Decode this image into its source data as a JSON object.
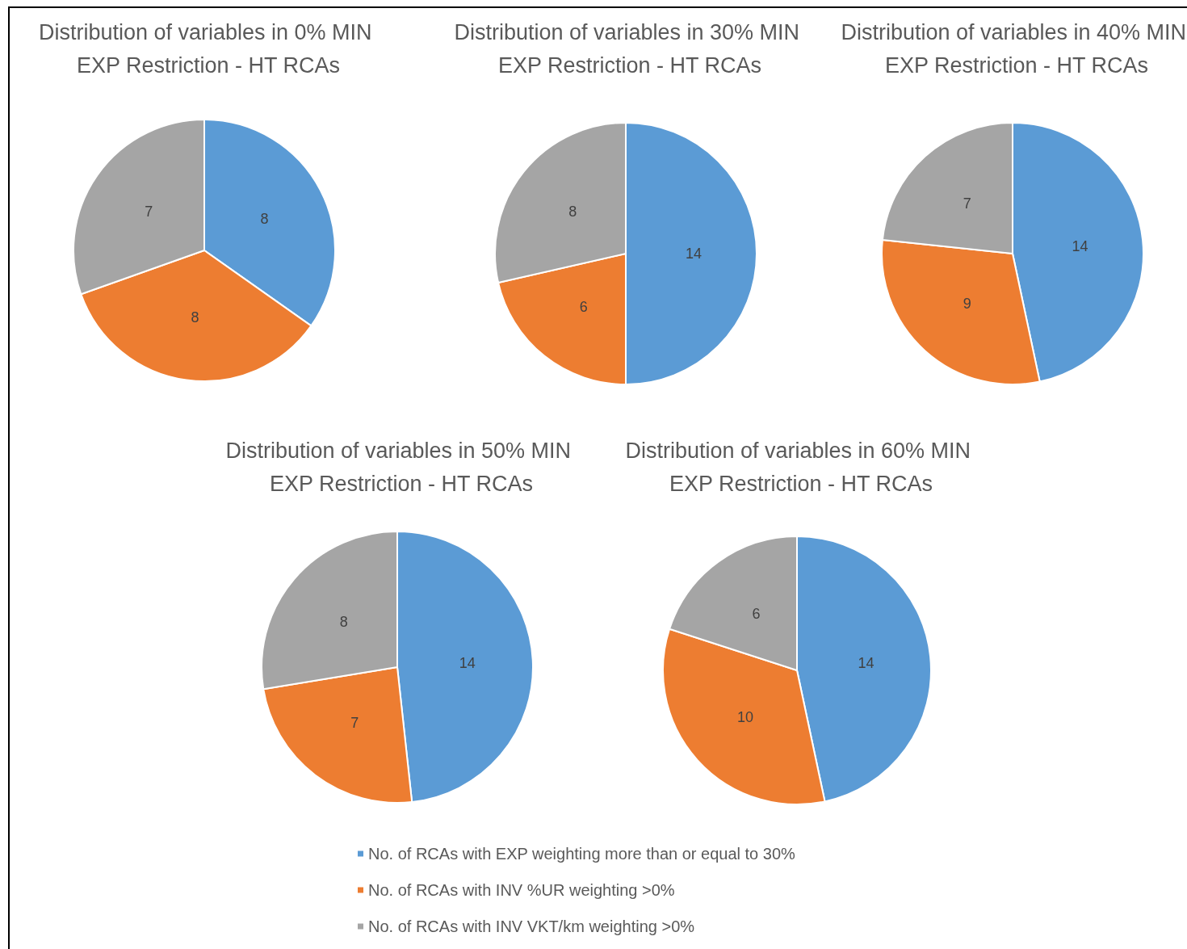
{
  "chart_data": [
    {
      "type": "pie",
      "title": "Distribution of variables in 0% MIN EXP Restriction - HT RCAs",
      "categories": [
        null,
        null,
        null
      ],
      "values": [
        8,
        8,
        7
      ],
      "colors": [
        "#5b9bd5",
        "#ed7d31",
        "#a5a5a5"
      ],
      "data_labels": true
    },
    {
      "type": "pie",
      "title": "Distribution of variables in 30% MIN EXP Restriction - HT RCAs",
      "categories": [
        null,
        null,
        null
      ],
      "values": [
        14,
        6,
        8
      ],
      "colors": [
        "#5b9bd5",
        "#ed7d31",
        "#a5a5a5"
      ],
      "data_labels": true
    },
    {
      "type": "pie",
      "title": "Distribution of variables in 40% MIN EXP Restriction - HT RCAs",
      "categories": [
        null,
        null,
        null
      ],
      "values": [
        14,
        9,
        7
      ],
      "colors": [
        "#5b9bd5",
        "#ed7d31",
        "#a5a5a5"
      ],
      "data_labels": true
    },
    {
      "type": "pie",
      "title": "Distribution of variables in 50% MIN EXP Restriction - HT RCAs",
      "categories": [
        null,
        null,
        null
      ],
      "values": [
        14,
        7,
        8
      ],
      "colors": [
        "#5b9bd5",
        "#ed7d31",
        "#a5a5a5"
      ],
      "data_labels": true
    },
    {
      "type": "pie",
      "title": "Distribution of variables in 60% MIN EXP Restriction - HT RCAs",
      "categories": [
        "No. of RCAs with EXP weighting more than or equal to 30%",
        "No. of RCAs with INV %UR weighting >0%",
        "No. of RCAs with INV VKT/km weighting >0%"
      ],
      "values": [
        14,
        10,
        6
      ],
      "colors": [
        "#5b9bd5",
        "#ed7d31",
        "#a5a5a5"
      ],
      "data_labels": true,
      "legend": "bottom"
    }
  ]
}
